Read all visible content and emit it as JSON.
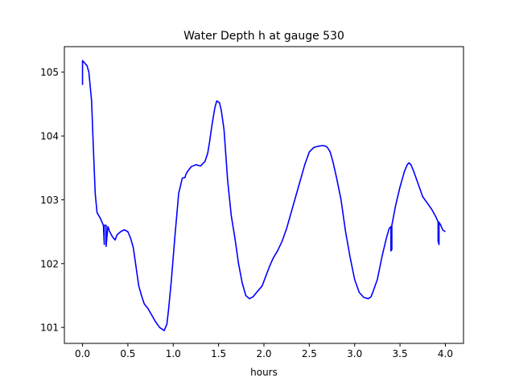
{
  "chart_data": {
    "type": "line",
    "title": "Water Depth h at gauge 530",
    "xlabel": "hours",
    "ylabel": "",
    "xlim": [
      -0.2,
      4.2
    ],
    "ylim": [
      100.75,
      105.4
    ],
    "xticks": [
      0.0,
      0.5,
      1.0,
      1.5,
      2.0,
      2.5,
      3.0,
      3.5,
      4.0
    ],
    "xtick_labels": [
      "0.0",
      "0.5",
      "1.0",
      "1.5",
      "2.0",
      "2.5",
      "3.0",
      "3.5",
      "4.0"
    ],
    "yticks": [
      101,
      102,
      103,
      104,
      105
    ],
    "ytick_labels": [
      "101",
      "102",
      "103",
      "104",
      "105"
    ],
    "grid": false,
    "series": [
      {
        "color": "#0000ff",
        "x": [
          0.0,
          0.0,
          0.02,
          0.05,
          0.07,
          0.1,
          0.12,
          0.14,
          0.16,
          0.18,
          0.2,
          0.23,
          0.24,
          0.24,
          0.26,
          0.26,
          0.28,
          0.3,
          0.33,
          0.36,
          0.38,
          0.42,
          0.46,
          0.5,
          0.53,
          0.56,
          0.59,
          0.62,
          0.65,
          0.68,
          0.72,
          0.76,
          0.8,
          0.85,
          0.9,
          0.93,
          0.95,
          0.98,
          1.02,
          1.06,
          1.1,
          1.13,
          1.14,
          1.16,
          1.2,
          1.25,
          1.3,
          1.35,
          1.38,
          1.4,
          1.43,
          1.46,
          1.48,
          1.51,
          1.53,
          1.56,
          1.6,
          1.64,
          1.68,
          1.72,
          1.76,
          1.8,
          1.84,
          1.88,
          1.92,
          1.95,
          1.98,
          2.02,
          2.06,
          2.1,
          2.15,
          2.2,
          2.25,
          2.3,
          2.35,
          2.4,
          2.45,
          2.5,
          2.55,
          2.6,
          2.65,
          2.68,
          2.7,
          2.73,
          2.76,
          2.8,
          2.85,
          2.9,
          2.95,
          3.0,
          3.05,
          3.1,
          3.15,
          3.18,
          3.2,
          3.25,
          3.3,
          3.35,
          3.38,
          3.4,
          3.4,
          3.41,
          3.41,
          3.45,
          3.5,
          3.55,
          3.58,
          3.6,
          3.62,
          3.65,
          3.7,
          3.75,
          3.8,
          3.85,
          3.9,
          3.92,
          3.92,
          3.93,
          3.93,
          3.95,
          3.97,
          4.0
        ],
        "y": [
          104.8,
          105.18,
          105.15,
          105.1,
          105.0,
          104.55,
          103.8,
          103.1,
          102.8,
          102.75,
          102.7,
          102.6,
          102.3,
          102.6,
          102.6,
          102.27,
          102.58,
          102.5,
          102.42,
          102.37,
          102.45,
          102.5,
          102.53,
          102.5,
          102.4,
          102.25,
          101.95,
          101.65,
          101.5,
          101.37,
          101.3,
          101.2,
          101.1,
          101.0,
          100.95,
          101.05,
          101.3,
          101.75,
          102.45,
          103.1,
          103.34,
          103.35,
          103.4,
          103.45,
          103.52,
          103.55,
          103.53,
          103.6,
          103.73,
          103.9,
          104.2,
          104.45,
          104.55,
          104.52,
          104.4,
          104.1,
          103.3,
          102.75,
          102.4,
          102.0,
          101.7,
          101.5,
          101.45,
          101.48,
          101.55,
          101.6,
          101.65,
          101.8,
          101.95,
          102.08,
          102.2,
          102.35,
          102.55,
          102.8,
          103.05,
          103.3,
          103.55,
          103.75,
          103.82,
          103.84,
          103.85,
          103.84,
          103.82,
          103.75,
          103.6,
          103.35,
          103.0,
          102.5,
          102.1,
          101.75,
          101.55,
          101.47,
          101.45,
          101.48,
          101.55,
          101.75,
          102.1,
          102.4,
          102.55,
          102.58,
          102.2,
          102.22,
          102.6,
          102.9,
          103.2,
          103.45,
          103.55,
          103.58,
          103.55,
          103.45,
          103.25,
          103.05,
          102.95,
          102.85,
          102.72,
          102.65,
          102.35,
          102.3,
          102.65,
          102.6,
          102.53,
          102.5
        ]
      }
    ]
  }
}
